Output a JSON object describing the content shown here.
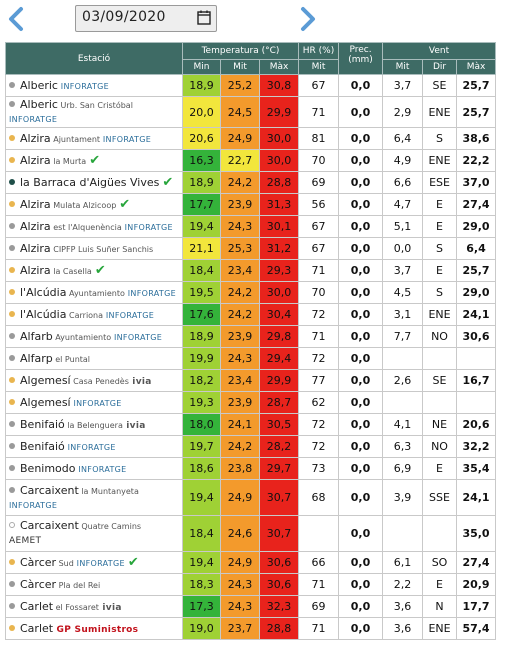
{
  "date": "03/09/2020",
  "header": {
    "station": "Estació",
    "temp": "Temperatura (°C)",
    "hr": "HR (%)",
    "prec": "Prec. (mm)",
    "wind": "Vent",
    "min": "Min",
    "mit": "Mit",
    "max": "Màx",
    "hr_mit": "Mit",
    "w_mit": "Mit",
    "w_dir": "Dir",
    "w_max": "Màx"
  },
  "colors": {
    "header_bg": "#3e6b65",
    "green_dark": "#34b33a",
    "green_light": "#9fd135",
    "yellow": "#f2e63c",
    "orange": "#f39a2c",
    "red": "#e8231c",
    "dot_yellow": "#e9b54f",
    "dot_gray": "#9a9a9a",
    "dot_dark": "#1f4f49"
  },
  "rows": [
    {
      "name": "Alberic",
      "sub": "",
      "tag": "INFORATGE",
      "tagtype": "inf",
      "check": false,
      "dot": "gray",
      "min": "18,9",
      "mit": "25,2",
      "max": "30,8",
      "hr": "67",
      "prec": "0,0",
      "wmit": "3,7",
      "wdir": "SE",
      "wmax": "25,7",
      "cmin": "green_light",
      "cmit": "orange",
      "cmax": "red"
    },
    {
      "name": "Alberic",
      "sub": "Urb. San Cristóbal",
      "tag": "INFORATGE",
      "tagtype": "inf",
      "check": false,
      "dot": "gray",
      "twoline": true,
      "min": "20,0",
      "mit": "24,5",
      "max": "29,9",
      "hr": "71",
      "prec": "0,0",
      "wmit": "2,9",
      "wdir": "ENE",
      "wmax": "25,7",
      "cmin": "yellow",
      "cmit": "orange",
      "cmax": "red"
    },
    {
      "name": "Alzira",
      "sub": "Ajuntament",
      "tag": "INFORATGE",
      "tagtype": "inf",
      "check": false,
      "dot": "yellow",
      "min": "20,6",
      "mit": "24,9",
      "max": "30,0",
      "hr": "81",
      "prec": "0,0",
      "wmit": "6,4",
      "wdir": "S",
      "wmax": "38,6",
      "cmin": "yellow",
      "cmit": "orange",
      "cmax": "red"
    },
    {
      "name": "Alzira",
      "sub": "la Murta",
      "tag": "",
      "tagtype": "",
      "check": true,
      "dot": "yellow",
      "min": "16,3",
      "mit": "22,7",
      "max": "30,0",
      "hr": "70",
      "prec": "0,0",
      "wmit": "4,9",
      "wdir": "ENE",
      "wmax": "22,2",
      "cmin": "green_dark",
      "cmit": "yellow",
      "cmax": "red"
    },
    {
      "name": "la Barraca d'Aigües Vives",
      "sub": "",
      "tag": "",
      "tagtype": "",
      "check": true,
      "dot": "dark",
      "min": "18,9",
      "mit": "24,2",
      "max": "28,8",
      "hr": "69",
      "prec": "0,0",
      "wmit": "6,6",
      "wdir": "ESE",
      "wmax": "37,0",
      "cmin": "green_light",
      "cmit": "orange",
      "cmax": "red"
    },
    {
      "name": "Alzira",
      "sub": "Mulata Alzicoop",
      "tag": "",
      "tagtype": "",
      "check": true,
      "dot": "yellow",
      "min": "17,7",
      "mit": "23,9",
      "max": "31,3",
      "hr": "56",
      "prec": "0,0",
      "wmit": "4,7",
      "wdir": "E",
      "wmax": "27,4",
      "cmin": "green_dark",
      "cmit": "orange",
      "cmax": "red"
    },
    {
      "name": "Alzira",
      "sub": "est l'Alquenència",
      "tag": "INFORATGE",
      "tagtype": "inf",
      "check": false,
      "dot": "gray",
      "min": "19,4",
      "mit": "24,3",
      "max": "30,1",
      "hr": "67",
      "prec": "0,0",
      "wmit": "5,1",
      "wdir": "E",
      "wmax": "29,0",
      "cmin": "green_light",
      "cmit": "orange",
      "cmax": "red"
    },
    {
      "name": "Alzira",
      "sub": "CIPFP Luis Suñer Sanchis",
      "tag": "",
      "tagtype": "",
      "check": false,
      "dot": "gray",
      "min": "21,1",
      "mit": "25,3",
      "max": "31,2",
      "hr": "67",
      "prec": "0,0",
      "wmit": "0,0",
      "wdir": "S",
      "wmax": "6,4",
      "cmin": "yellow",
      "cmit": "orange",
      "cmax": "red"
    },
    {
      "name": "Alzira",
      "sub": "la Casella",
      "tag": "",
      "tagtype": "",
      "check": true,
      "dot": "yellow",
      "min": "18,4",
      "mit": "23,4",
      "max": "29,3",
      "hr": "71",
      "prec": "0,0",
      "wmit": "3,7",
      "wdir": "E",
      "wmax": "25,7",
      "cmin": "green_light",
      "cmit": "orange",
      "cmax": "red"
    },
    {
      "name": "l'Alcúdia",
      "sub": "Ayuntamiento",
      "tag": "INFORATGE",
      "tagtype": "inf",
      "check": false,
      "dot": "yellow",
      "min": "19,5",
      "mit": "24,2",
      "max": "30,0",
      "hr": "70",
      "prec": "0,0",
      "wmit": "4,5",
      "wdir": "S",
      "wmax": "29,0",
      "cmin": "green_light",
      "cmit": "orange",
      "cmax": "red"
    },
    {
      "name": "l'Alcúdia",
      "sub": "Carriona",
      "tag": "INFORATGE",
      "tagtype": "inf",
      "check": false,
      "dot": "yellow",
      "min": "17,6",
      "mit": "24,2",
      "max": "30,4",
      "hr": "72",
      "prec": "0,0",
      "wmit": "3,1",
      "wdir": "ENE",
      "wmax": "24,1",
      "cmin": "green_dark",
      "cmit": "orange",
      "cmax": "red"
    },
    {
      "name": "Alfarb",
      "sub": "Ayuntamiento",
      "tag": "INFORATGE",
      "tagtype": "inf",
      "check": false,
      "dot": "gray",
      "min": "18,9",
      "mit": "23,9",
      "max": "29,8",
      "hr": "71",
      "prec": "0,0",
      "wmit": "7,7",
      "wdir": "NO",
      "wmax": "30,6",
      "cmin": "green_light",
      "cmit": "orange",
      "cmax": "red"
    },
    {
      "name": "Alfarp",
      "sub": "el Puntal",
      "tag": "",
      "tagtype": "",
      "check": false,
      "dot": "gray",
      "min": "19,9",
      "mit": "24,3",
      "max": "29,4",
      "hr": "72",
      "prec": "0,0",
      "wmit": "",
      "wdir": "",
      "wmax": "",
      "cmin": "green_light",
      "cmit": "orange",
      "cmax": "red"
    },
    {
      "name": "Algemesí",
      "sub": "Casa Penedès",
      "tag": "ivia",
      "tagtype": "ivia",
      "check": false,
      "dot": "yellow",
      "min": "18,2",
      "mit": "23,4",
      "max": "29,9",
      "hr": "77",
      "prec": "0,0",
      "wmit": "2,6",
      "wdir": "SE",
      "wmax": "16,7",
      "cmin": "green_light",
      "cmit": "orange",
      "cmax": "red"
    },
    {
      "name": "Algemesí",
      "sub": "",
      "tag": "INFORATGE",
      "tagtype": "inf",
      "check": false,
      "dot": "yellow",
      "min": "19,3",
      "mit": "23,9",
      "max": "28,7",
      "hr": "62",
      "prec": "0,0",
      "wmit": "",
      "wdir": "",
      "wmax": "",
      "cmin": "green_light",
      "cmit": "orange",
      "cmax": "red"
    },
    {
      "name": "Benifaió",
      "sub": "la Belenguera",
      "tag": "ivia",
      "tagtype": "ivia",
      "check": false,
      "dot": "gray",
      "min": "18,0",
      "mit": "24,1",
      "max": "30,5",
      "hr": "72",
      "prec": "0,0",
      "wmit": "4,1",
      "wdir": "NE",
      "wmax": "20,6",
      "cmin": "green_dark",
      "cmit": "orange",
      "cmax": "red"
    },
    {
      "name": "Benifaió",
      "sub": "",
      "tag": "INFORATGE",
      "tagtype": "inf",
      "check": false,
      "dot": "gray",
      "min": "19,7",
      "mit": "24,2",
      "max": "28,2",
      "hr": "72",
      "prec": "0,0",
      "wmit": "6,3",
      "wdir": "NO",
      "wmax": "32,2",
      "cmin": "green_light",
      "cmit": "orange",
      "cmax": "red"
    },
    {
      "name": "Benimodo",
      "sub": "",
      "tag": "INFORATGE",
      "tagtype": "inf",
      "check": false,
      "dot": "gray",
      "min": "18,6",
      "mit": "23,8",
      "max": "29,7",
      "hr": "73",
      "prec": "0,0",
      "wmit": "6,9",
      "wdir": "E",
      "wmax": "35,4",
      "cmin": "green_light",
      "cmit": "orange",
      "cmax": "red"
    },
    {
      "name": "Carcaixent",
      "sub": "la Muntanyeta",
      "tag": "INFORATGE",
      "tagtype": "inf",
      "check": false,
      "dot": "gray",
      "twoline": true,
      "tall": true,
      "min": "19,4",
      "mit": "24,9",
      "max": "30,7",
      "hr": "68",
      "prec": "0,0",
      "wmit": "3,9",
      "wdir": "SSE",
      "wmax": "24,1",
      "cmin": "green_light",
      "cmit": "orange",
      "cmax": "red"
    },
    {
      "name": "Carcaixent",
      "sub": "Quatre Camins",
      "tag": "AEMET",
      "tagtype": "aemet",
      "check": false,
      "dot": "none",
      "twoline": true,
      "tall": true,
      "min": "18,4",
      "mit": "24,6",
      "max": "30,7",
      "hr": "",
      "prec": "0,0",
      "wmit": "",
      "wdir": "",
      "wmax": "35,0",
      "cmin": "green_light",
      "cmit": "orange",
      "cmax": "red"
    },
    {
      "name": "Càrcer",
      "sub": "Sud",
      "tag": "INFORATGE",
      "tagtype": "inf",
      "check": true,
      "dot": "yellow",
      "min": "19,4",
      "mit": "24,9",
      "max": "30,6",
      "hr": "66",
      "prec": "0,0",
      "wmit": "6,1",
      "wdir": "SO",
      "wmax": "27,4",
      "cmin": "green_light",
      "cmit": "orange",
      "cmax": "red"
    },
    {
      "name": "Càrcer",
      "sub": "Pla del Rei",
      "tag": "",
      "tagtype": "",
      "check": false,
      "dot": "gray",
      "min": "18,3",
      "mit": "24,3",
      "max": "30,6",
      "hr": "71",
      "prec": "0,0",
      "wmit": "2,2",
      "wdir": "E",
      "wmax": "20,9",
      "cmin": "green_light",
      "cmit": "orange",
      "cmax": "red"
    },
    {
      "name": "Carlet",
      "sub": "el Fossaret",
      "tag": "ivia",
      "tagtype": "ivia",
      "check": false,
      "dot": "gray",
      "min": "17,3",
      "mit": "24,3",
      "max": "32,3",
      "hr": "69",
      "prec": "0,0",
      "wmit": "3,6",
      "wdir": "N",
      "wmax": "17,7",
      "cmin": "green_dark",
      "cmit": "orange",
      "cmax": "red"
    },
    {
      "name": "Carlet",
      "sub": "",
      "tag": "GP Suministros",
      "tagtype": "gp",
      "check": false,
      "dot": "yellow",
      "min": "19,0",
      "mit": "23,7",
      "max": "28,8",
      "hr": "71",
      "prec": "0,0",
      "wmit": "3,6",
      "wdir": "ENE",
      "wmax": "57,4",
      "cmin": "green_light",
      "cmit": "orange",
      "cmax": "red"
    }
  ]
}
